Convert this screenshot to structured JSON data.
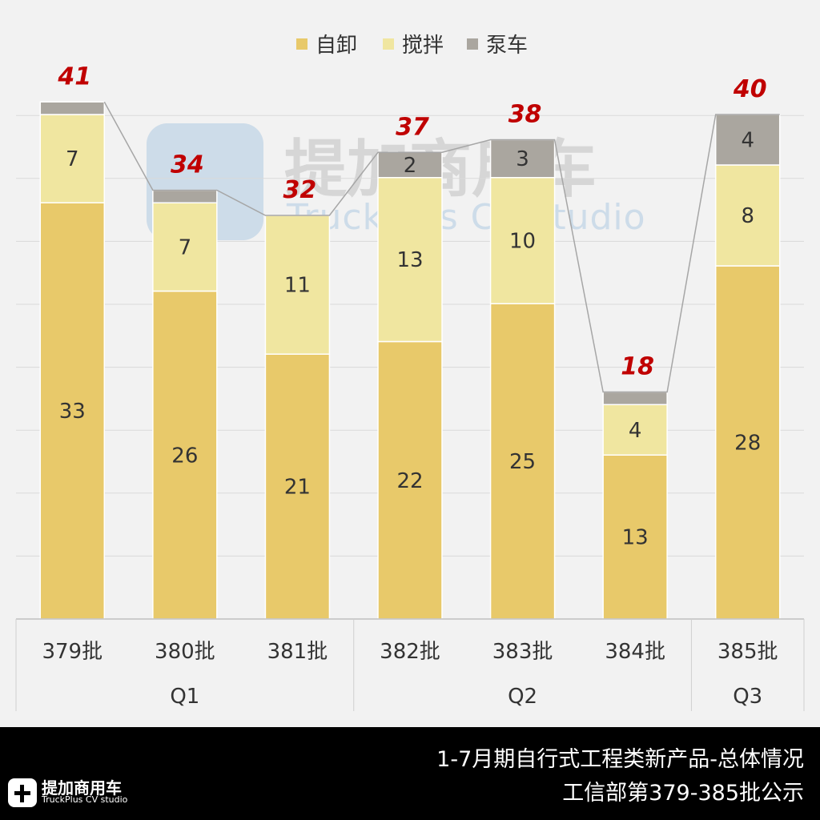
{
  "chart_data": {
    "type": "bar",
    "stacked": true,
    "title": "",
    "xlabel": "",
    "ylabel": "",
    "categories": [
      "379批",
      "380批",
      "381批",
      "382批",
      "383批",
      "384批",
      "385批"
    ],
    "groups": [
      {
        "label": "Q1",
        "categories": [
          "379批",
          "380批",
          "381批"
        ]
      },
      {
        "label": "Q2",
        "categories": [
          "382批",
          "383批",
          "384批"
        ]
      },
      {
        "label": "Q3",
        "categories": [
          "385批"
        ]
      }
    ],
    "series": [
      {
        "name": "自卸",
        "color": "#e8c96a",
        "values": [
          33,
          26,
          21,
          22,
          25,
          13,
          28
        ],
        "labels": [
          "33",
          "26",
          "21",
          "22",
          "25",
          "13",
          "28"
        ]
      },
      {
        "name": "搅拌",
        "color": "#f0e6a0",
        "values": [
          7,
          7,
          11,
          13,
          10,
          4,
          8
        ],
        "labels": [
          "7",
          "7",
          "11",
          "13",
          "10",
          "4",
          "8"
        ]
      },
      {
        "name": "泵车",
        "color": "#aaa69f",
        "values": [
          1,
          1,
          0,
          2,
          3,
          1,
          4
        ],
        "labels": [
          "",
          "",
          "",
          "2",
          "3",
          "",
          "4"
        ]
      }
    ],
    "totals": [
      41,
      34,
      32,
      37,
      38,
      18,
      40
    ],
    "total_labels": [
      "41",
      "34",
      "32",
      "37",
      "38",
      "18",
      "40"
    ],
    "ylim": [
      0,
      42
    ],
    "grid": true,
    "legend": "top-center",
    "total_label_color": "#c00000"
  },
  "footer": {
    "title": "1-7月期自行式工程类新产品-总体情况",
    "subtitle": "工信部第379-385批公示"
  },
  "watermark": {
    "cn": "提加商用车",
    "en": "TruckPlus  CV studio"
  },
  "logo": {
    "cn": "提加商用车",
    "en": "TruckPlus CV studio"
  }
}
